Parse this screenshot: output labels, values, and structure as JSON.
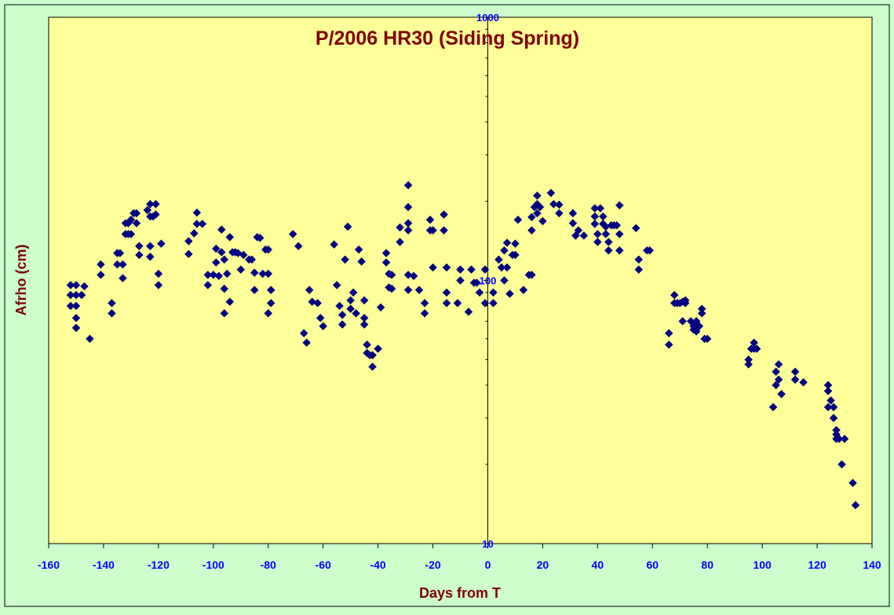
{
  "chart_data": {
    "type": "scatter",
    "title": "P/2006 HR30 (Siding Spring)",
    "xlabel": "Days from T",
    "ylabel": "Afrho (cm)",
    "xlim": [
      -160,
      140
    ],
    "ylim": [
      10,
      1000
    ],
    "y_scale": "log",
    "x_ticks": [
      -160,
      -140,
      -120,
      -100,
      -80,
      -60,
      -40,
      -20,
      0,
      20,
      40,
      60,
      80,
      100,
      120,
      140
    ],
    "y_ticks": [
      10,
      100,
      1000
    ],
    "grid": false,
    "legend": "none",
    "colors": {
      "plot_bg": "#ffff99",
      "outer_bg": "#ccffcc",
      "marker": "#000080",
      "title": "#800000",
      "axis_title": "#800000",
      "tick_label": "#0000ff"
    },
    "points": [
      [
        -152,
        96
      ],
      [
        -150,
        96
      ],
      [
        -152,
        88
      ],
      [
        -150,
        88
      ],
      [
        -152,
        80
      ],
      [
        -148,
        88
      ],
      [
        -147,
        95
      ],
      [
        -150,
        80
      ],
      [
        -150,
        72
      ],
      [
        -150,
        66
      ],
      [
        -145,
        60
      ],
      [
        -141,
        115
      ],
      [
        -141,
        105
      ],
      [
        -137,
        82
      ],
      [
        -137,
        75
      ],
      [
        -135,
        127
      ],
      [
        -134,
        127
      ],
      [
        -135,
        115
      ],
      [
        -133,
        115
      ],
      [
        -133,
        102
      ],
      [
        -132,
        165
      ],
      [
        -132,
        150
      ],
      [
        -131,
        165
      ],
      [
        -131,
        150
      ],
      [
        -130,
        170
      ],
      [
        -130,
        150
      ],
      [
        -129,
        180
      ],
      [
        -128,
        180
      ],
      [
        -128,
        165
      ],
      [
        -127,
        135
      ],
      [
        -127,
        125
      ],
      [
        -124,
        185
      ],
      [
        -123,
        195
      ],
      [
        -123,
        175
      ],
      [
        -123,
        135
      ],
      [
        -123,
        123
      ],
      [
        -122,
        175
      ],
      [
        -121,
        195
      ],
      [
        -121,
        178
      ],
      [
        -120,
        106
      ],
      [
        -120,
        96
      ],
      [
        -119,
        138
      ],
      [
        -109,
        141
      ],
      [
        -109,
        126
      ],
      [
        -107,
        151
      ],
      [
        -106,
        181
      ],
      [
        -106,
        164
      ],
      [
        -104,
        164
      ],
      [
        -102,
        105
      ],
      [
        -102,
        96
      ],
      [
        -100,
        105
      ],
      [
        -99,
        132
      ],
      [
        -99,
        117
      ],
      [
        -98,
        104
      ],
      [
        -97,
        128
      ],
      [
        -97,
        156
      ],
      [
        -96,
        120
      ],
      [
        -96,
        93
      ],
      [
        -96,
        75
      ],
      [
        -95,
        106
      ],
      [
        -94,
        83
      ],
      [
        -94,
        146
      ],
      [
        -93,
        128
      ],
      [
        -92,
        128
      ],
      [
        -91,
        127
      ],
      [
        -90,
        110
      ],
      [
        -89,
        125
      ],
      [
        -87,
        120
      ],
      [
        -86,
        120
      ],
      [
        -85,
        107
      ],
      [
        -85,
        92
      ],
      [
        -84,
        146
      ],
      [
        -83,
        145
      ],
      [
        -82,
        106
      ],
      [
        -81,
        131
      ],
      [
        -80,
        131
      ],
      [
        -80,
        106
      ],
      [
        -80,
        75
      ],
      [
        -79,
        92
      ],
      [
        -79,
        82
      ],
      [
        -71,
        150
      ],
      [
        -69,
        135
      ],
      [
        -67,
        63
      ],
      [
        -66,
        58
      ],
      [
        -65,
        92
      ],
      [
        -64,
        83
      ],
      [
        -62,
        82
      ],
      [
        -61,
        72
      ],
      [
        -60,
        67
      ],
      [
        -56,
        137
      ],
      [
        -55,
        96
      ],
      [
        -54,
        80
      ],
      [
        -53,
        68
      ],
      [
        -53,
        74
      ],
      [
        -52,
        120
      ],
      [
        -51,
        160
      ],
      [
        -50,
        84
      ],
      [
        -50,
        78
      ],
      [
        -49,
        90
      ],
      [
        -48,
        75
      ],
      [
        -47,
        131
      ],
      [
        -46,
        118
      ],
      [
        -45,
        84
      ],
      [
        -45,
        72
      ],
      [
        -45,
        68
      ],
      [
        -44,
        57
      ],
      [
        -44,
        53
      ],
      [
        -43,
        52
      ],
      [
        -42,
        47
      ],
      [
        -42,
        52
      ],
      [
        -40,
        55
      ],
      [
        -39,
        79
      ],
      [
        -37,
        127
      ],
      [
        -37,
        117
      ],
      [
        -36,
        106
      ],
      [
        -36,
        94
      ],
      [
        -35,
        105
      ],
      [
        -35,
        93
      ],
      [
        -32,
        140
      ],
      [
        -32,
        159
      ],
      [
        -29,
        230
      ],
      [
        -29,
        190
      ],
      [
        -29,
        165
      ],
      [
        -29,
        155
      ],
      [
        -29,
        105
      ],
      [
        -29,
        92
      ],
      [
        -27,
        104
      ],
      [
        -25,
        92
      ],
      [
        -23,
        82
      ],
      [
        -23,
        75
      ],
      [
        -21,
        170
      ],
      [
        -21,
        155
      ],
      [
        -20,
        155
      ],
      [
        -20,
        112
      ],
      [
        -16,
        178
      ],
      [
        -16,
        155
      ],
      [
        -15,
        112
      ],
      [
        -15,
        90
      ],
      [
        -15,
        82
      ],
      [
        -11,
        82
      ],
      [
        -10,
        110
      ],
      [
        -10,
        100
      ],
      [
        -7,
        76
      ],
      [
        -6,
        110
      ],
      [
        -5,
        98
      ],
      [
        -4,
        98
      ],
      [
        -3,
        90
      ],
      [
        -1,
        110
      ],
      [
        -1,
        82
      ],
      [
        2,
        90
      ],
      [
        2,
        82
      ],
      [
        4,
        120
      ],
      [
        5,
        112
      ],
      [
        6,
        100
      ],
      [
        6,
        130
      ],
      [
        7,
        112
      ],
      [
        7,
        139
      ],
      [
        8,
        89
      ],
      [
        9,
        125
      ],
      [
        10,
        138
      ],
      [
        10,
        125
      ],
      [
        11,
        170
      ],
      [
        13,
        92
      ],
      [
        15,
        105
      ],
      [
        16,
        105
      ],
      [
        16,
        155
      ],
      [
        16,
        174
      ],
      [
        17,
        190
      ],
      [
        18,
        195
      ],
      [
        18,
        210
      ],
      [
        18,
        180
      ],
      [
        19,
        190
      ],
      [
        20,
        168
      ],
      [
        23,
        215
      ],
      [
        24,
        195
      ],
      [
        26,
        194
      ],
      [
        26,
        180
      ],
      [
        31,
        180
      ],
      [
        31,
        165
      ],
      [
        32,
        148
      ],
      [
        33,
        155
      ],
      [
        35,
        148
      ],
      [
        39,
        188
      ],
      [
        39,
        175
      ],
      [
        39,
        164
      ],
      [
        40,
        150
      ],
      [
        40,
        140
      ],
      [
        41,
        188
      ],
      [
        42,
        175
      ],
      [
        42,
        164
      ],
      [
        43,
        160
      ],
      [
        43,
        150
      ],
      [
        44,
        130
      ],
      [
        44,
        140
      ],
      [
        45,
        162
      ],
      [
        46,
        162
      ],
      [
        47,
        162
      ],
      [
        48,
        150
      ],
      [
        48,
        130
      ],
      [
        48,
        193
      ],
      [
        54,
        158
      ],
      [
        55,
        110
      ],
      [
        55,
        120
      ],
      [
        58,
        130
      ],
      [
        59,
        130
      ],
      [
        66,
        63
      ],
      [
        66,
        57
      ],
      [
        68,
        82
      ],
      [
        68,
        88
      ],
      [
        69,
        82
      ],
      [
        70,
        82
      ],
      [
        71,
        70
      ],
      [
        71,
        83
      ],
      [
        72,
        84
      ],
      [
        72,
        82
      ],
      [
        74,
        70
      ],
      [
        75,
        67
      ],
      [
        75,
        65
      ],
      [
        76,
        64
      ],
      [
        76,
        70
      ],
      [
        77,
        67
      ],
      [
        77,
        67
      ],
      [
        78,
        75
      ],
      [
        78,
        78
      ],
      [
        79,
        60
      ],
      [
        80,
        60
      ],
      [
        95,
        50
      ],
      [
        95,
        48
      ],
      [
        96,
        55
      ],
      [
        97,
        55
      ],
      [
        97,
        58
      ],
      [
        98,
        55
      ],
      [
        104,
        33
      ],
      [
        105,
        45
      ],
      [
        105,
        40
      ],
      [
        106,
        42
      ],
      [
        106,
        48
      ],
      [
        107,
        37
      ],
      [
        112,
        42
      ],
      [
        112,
        45
      ],
      [
        115,
        41
      ],
      [
        124,
        33
      ],
      [
        124,
        38
      ],
      [
        124,
        40
      ],
      [
        125,
        35
      ],
      [
        126,
        33
      ],
      [
        126,
        30
      ],
      [
        127,
        27
      ],
      [
        127,
        25
      ],
      [
        127,
        26
      ],
      [
        128,
        25
      ],
      [
        129,
        20
      ],
      [
        130,
        25
      ],
      [
        133,
        17
      ],
      [
        134,
        14
      ]
    ]
  }
}
